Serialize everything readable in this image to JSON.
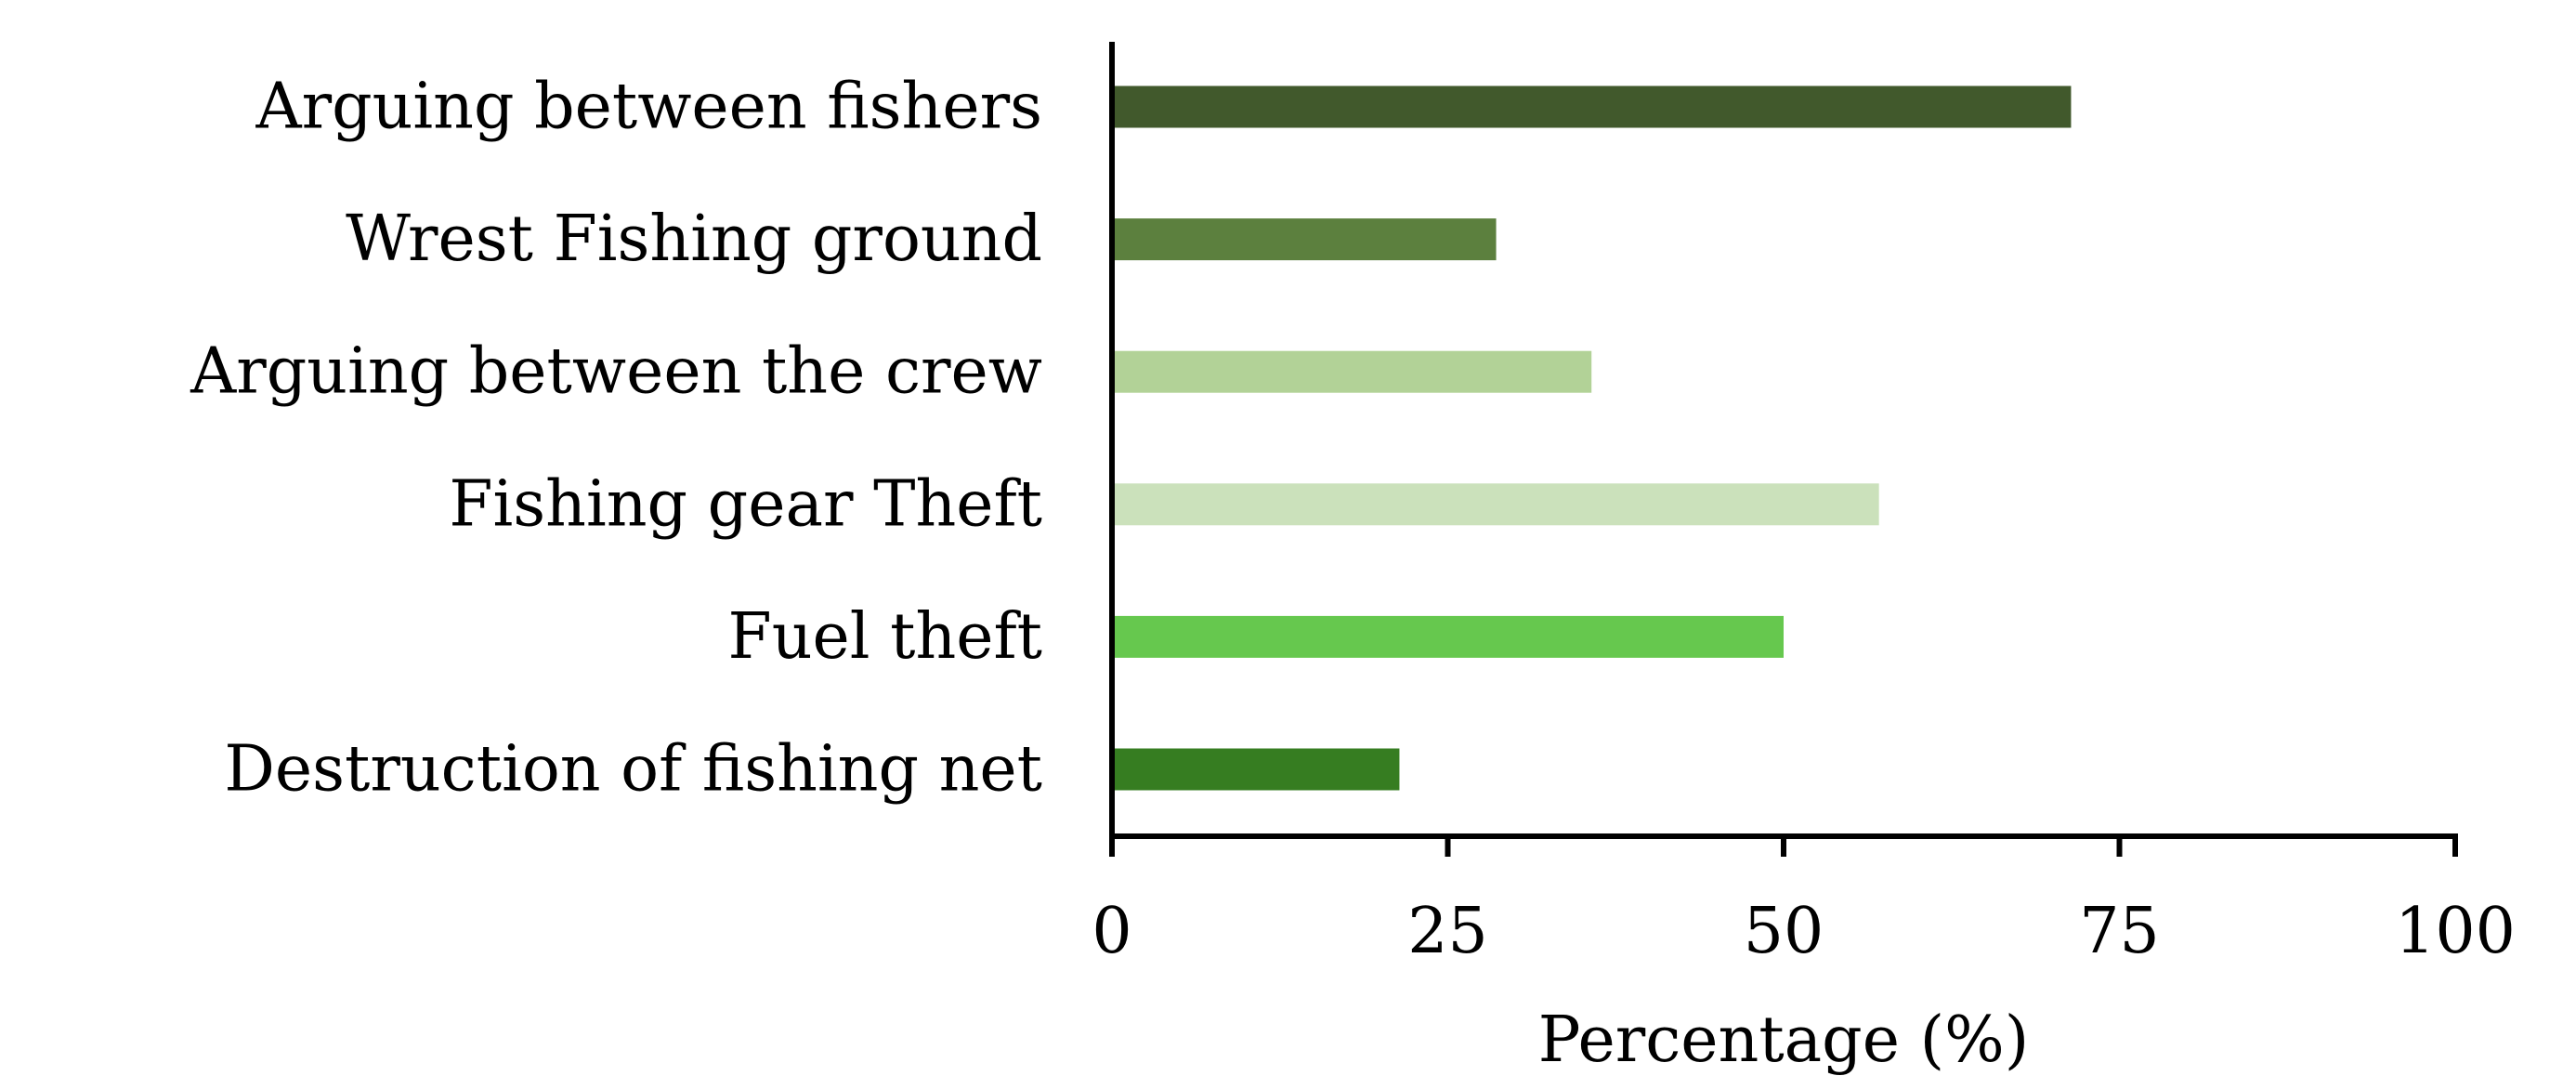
{
  "chart_data": {
    "type": "bar",
    "orientation": "horizontal",
    "categories": [
      "Arguing between fishers",
      "Wrest Fishing ground",
      "Arguing between the crew",
      "Fishing gear Theft",
      "Fuel theft",
      "Destruction of fishing net"
    ],
    "values": [
      71.4,
      28.6,
      35.7,
      57.1,
      50.0,
      21.4
    ],
    "colors": [
      "#41592c",
      "#5c803e",
      "#b2d297",
      "#cbe1bb",
      "#66c84e",
      "#367d21"
    ],
    "title": "",
    "xlabel": "Percentage (%)",
    "ylabel": "",
    "xlim": [
      0,
      100
    ],
    "xticks": [
      0,
      25,
      50,
      75,
      100
    ],
    "grid": false,
    "legend": "none"
  }
}
